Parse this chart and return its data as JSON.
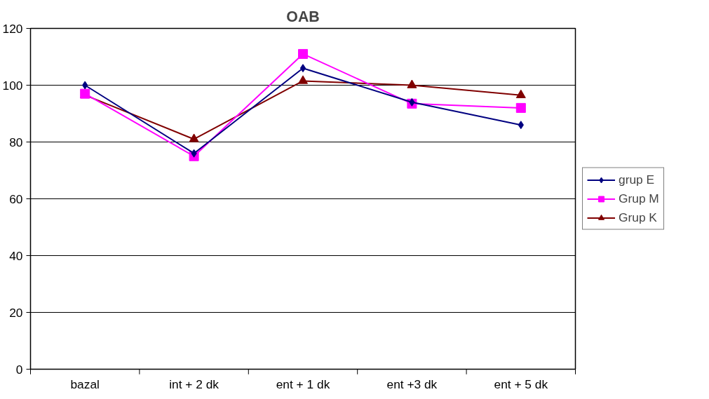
{
  "chart_data": {
    "type": "line",
    "title": "OAB",
    "categories": [
      "bazal",
      "int + 2 dk",
      "ent + 1 dk",
      "ent +3 dk",
      "ent + 5 dk"
    ],
    "series": [
      {
        "name": "grup E",
        "color": "#000080",
        "marker": "diamond",
        "values": [
          100,
          76,
          106,
          94,
          86
        ]
      },
      {
        "name": "Grup M",
        "color": "#ff00ff",
        "marker": "square",
        "values": [
          97,
          75,
          111,
          93.5,
          92
        ]
      },
      {
        "name": "Grup K",
        "color": "#800000",
        "marker": "triangle",
        "values": [
          96.5,
          81,
          101.5,
          100,
          96.5
        ]
      }
    ],
    "ylim": [
      0,
      120
    ],
    "yticks": [
      0,
      20,
      40,
      60,
      80,
      100,
      120
    ],
    "grid": "y",
    "legend": "right"
  }
}
